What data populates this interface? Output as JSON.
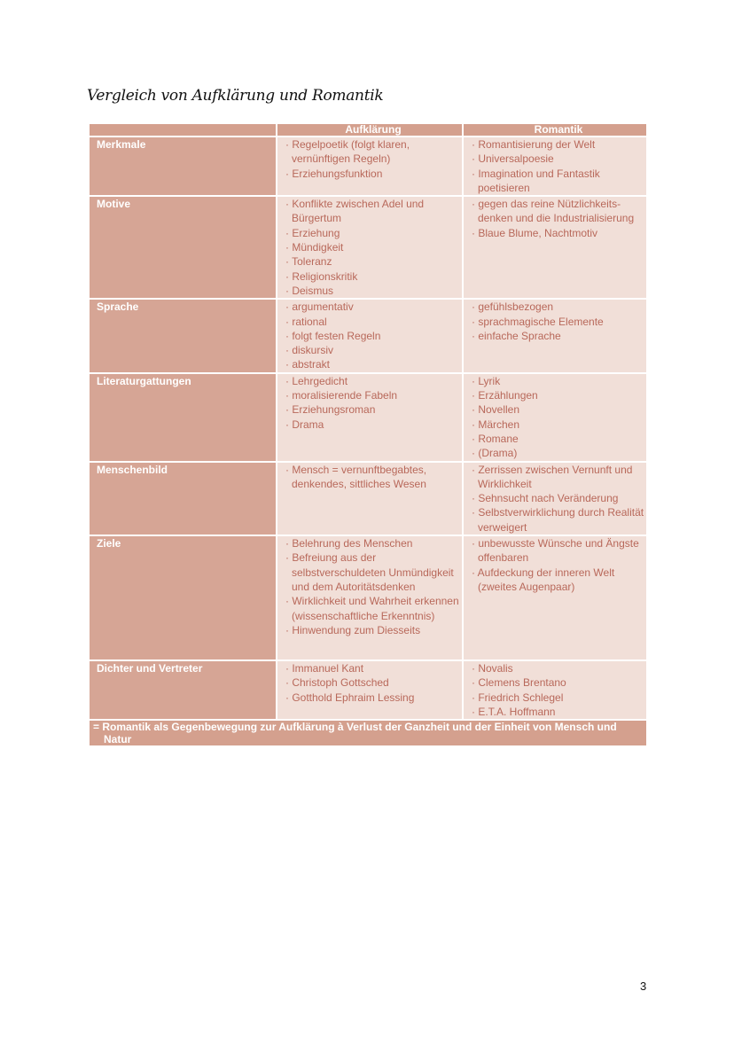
{
  "title": "Vergleich von Aufklärung und Romantik",
  "table": {
    "headers": [
      "",
      "Aufklärung",
      "Romantik"
    ],
    "rows": [
      {
        "label": "Merkmale",
        "aufklaerung": [
          "· Regelpoetik (folgt klaren, vernünftigen Regeln)",
          "· Erziehungsfunktion"
        ],
        "romantik": [
          "· Romantisierung der Welt",
          "· Universalpoesie",
          "· Imagination und Fantastik poetisieren"
        ]
      },
      {
        "label": "Motive",
        "aufklaerung": [
          "· Konflikte zwischen Adel und Bürgertum",
          "· Erziehung",
          "· Mündigkeit",
          "· Toleranz",
          "· Religionskritik",
          "· Deismus"
        ],
        "romantik": [
          "· gegen das reine Nützlichkeits-denken und die Industrialisierung",
          "· Blaue Blume, Nachtmotiv"
        ]
      },
      {
        "label": "Sprache",
        "aufklaerung": [
          "· argumentativ",
          "· rational",
          "· folgt festen Regeln",
          "· diskursiv",
          "· abstrakt"
        ],
        "romantik": [
          "· gefühlsbezogen",
          "· sprachmagische Elemente",
          "· einfache Sprache"
        ]
      },
      {
        "label": "Literaturgattungen",
        "aufklaerung": [
          "· Lehrgedicht",
          "· moralisierende Fabeln",
          "· Erziehungsroman",
          "· Drama"
        ],
        "romantik": [
          "· Lyrik",
          "· Erzählungen",
          "· Novellen",
          "· Märchen",
          "· Romane",
          "· (Drama)"
        ]
      },
      {
        "label": "Menschenbild",
        "aufklaerung": [
          "· Mensch = vernunftbegabtes, denkendes, sittliches Wesen"
        ],
        "romantik": [
          "· Zerrissen zwischen Vernunft und Wirklichkeit",
          "· Sehnsucht nach Veränderung",
          "· Selbstverwirklichung durch Realität verweigert"
        ]
      },
      {
        "label": "Ziele",
        "aufklaerung": [
          "· Belehrung des Menschen",
          "· Befreiung aus der selbstverschuldeten Unmündigkeit und dem Autoritätsdenken",
          "· Wirklichkeit und Wahrheit erkennen (wissenschaftliche Erkenntnis)",
          "· Hinwendung zum Diesseits"
        ],
        "romantik": [
          "· unbewusste Wünsche und Ängste offenbaren",
          "· Aufdeckung der inneren Welt (zweites Augenpaar)"
        ]
      },
      {
        "label": "Dichter und Vertreter",
        "aufklaerung": [
          "· Immanuel Kant",
          "· Christoph Gottsched",
          "· Gotthold Ephraim Lessing"
        ],
        "romantik": [
          "· Novalis",
          "· Clemens Brentano",
          "· Friedrich Schlegel",
          "· E.T.A. Hoffmann"
        ]
      }
    ],
    "footer": "= Romantik als Gegenbewegung zur Aufklärung à Verlust der Ganzheit und der Einheit von Mensch und Natur"
  },
  "page_number": "3",
  "colors": {
    "header": "#d4a08e",
    "label_cell": "#d6a595",
    "content_cell": "#f1dfd8",
    "content_text": "#b8685a"
  }
}
